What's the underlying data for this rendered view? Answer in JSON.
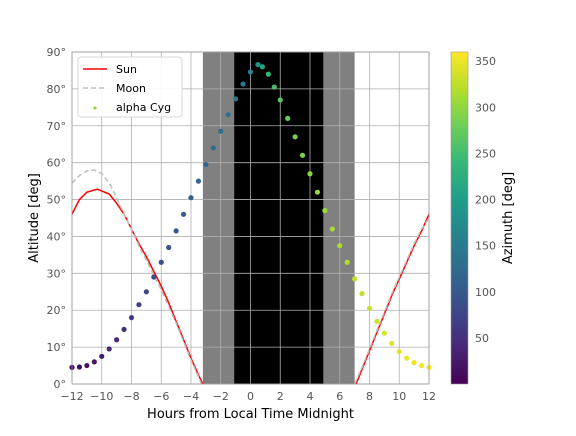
{
  "chart_data": {
    "type": "line",
    "xlabel": "Hours from Local Time Midnight",
    "ylabel": "Altitude [deg]",
    "xlim": [
      -12,
      12
    ],
    "ylim": [
      0,
      90
    ],
    "x_ticks": [
      "−12",
      "−10",
      "−8",
      "−6",
      "−4",
      "−2",
      "0",
      "2",
      "4",
      "6",
      "8",
      "10",
      "12"
    ],
    "y_ticks": [
      "0°",
      "10°",
      "20°",
      "30°",
      "40°",
      "50°",
      "60°",
      "70°",
      "80°",
      "90°"
    ],
    "grid": true,
    "legend_position": "upper-left",
    "night_shading": {
      "twilight": [
        [
          -3.2,
          -1.1
        ],
        [
          4.9,
          7.0
        ]
      ],
      "dark": [
        -1.1,
        4.9
      ],
      "twilight_color": "#808080",
      "dark_color": "#000000"
    },
    "series": [
      {
        "name": "Sun",
        "style": "solid",
        "color": "#ff0000",
        "points": [
          [
            -12,
            46
          ],
          [
            -11.5,
            50
          ],
          [
            -11,
            52
          ],
          [
            -10.3,
            52.8
          ],
          [
            -9.5,
            51.5
          ],
          [
            -9,
            49
          ],
          [
            -8.5,
            46
          ],
          [
            -8,
            42
          ],
          [
            -7.5,
            38
          ],
          [
            -7,
            34.5
          ],
          [
            -6.5,
            30.5
          ],
          [
            -6,
            26.5
          ],
          [
            -5.5,
            22
          ],
          [
            -5,
            17
          ],
          [
            -4.5,
            12
          ],
          [
            -4,
            7
          ],
          [
            -3.5,
            2.5
          ],
          [
            -3.2,
            0
          ]
        ]
      },
      {
        "name": "Sun",
        "style": "solid",
        "color": "#ff0000",
        "points": [
          [
            7.1,
            0
          ],
          [
            7.5,
            4
          ],
          [
            8,
            9
          ],
          [
            8.5,
            14
          ],
          [
            9,
            19
          ],
          [
            9.5,
            24
          ],
          [
            10,
            28.5
          ],
          [
            10.5,
            33
          ],
          [
            11,
            37.5
          ],
          [
            11.5,
            41.5
          ],
          [
            12,
            46
          ]
        ]
      },
      {
        "name": "Moon",
        "style": "dashed",
        "color": "#bfbfbf",
        "points": [
          [
            -12,
            54.5
          ],
          [
            -11.5,
            56.5
          ],
          [
            -11,
            57.8
          ],
          [
            -10.5,
            58
          ],
          [
            -10,
            57
          ],
          [
            -9.5,
            54.5
          ],
          [
            -9,
            50.5
          ],
          [
            -8.5,
            46
          ],
          [
            -8,
            42
          ],
          [
            -7.5,
            37.5
          ],
          [
            -7,
            33.5
          ],
          [
            -6.5,
            29.5
          ],
          [
            -6,
            25.5
          ],
          [
            -5.5,
            21
          ],
          [
            -5,
            16.5
          ],
          [
            -4.5,
            11.5
          ],
          [
            -4,
            6.5
          ],
          [
            -3.5,
            2
          ],
          [
            -3.3,
            0
          ]
        ]
      },
      {
        "name": "Moon",
        "style": "dashed",
        "color": "#bfbfbf",
        "points": [
          [
            7.0,
            0
          ],
          [
            7.5,
            4.5
          ],
          [
            8,
            9.5
          ],
          [
            8.5,
            14.5
          ],
          [
            9,
            19.5
          ],
          [
            9.5,
            24.5
          ],
          [
            10,
            29
          ],
          [
            10.5,
            33.5
          ],
          [
            11,
            38
          ],
          [
            11.5,
            42
          ],
          [
            12,
            45
          ]
        ]
      },
      {
        "name": "alpha Cyg",
        "style": "points",
        "colorbar": true,
        "points": [
          [
            -12,
            4.5,
            8
          ],
          [
            -11.5,
            4.6,
            10
          ],
          [
            -11,
            5.0,
            14
          ],
          [
            -10.5,
            6.0,
            20
          ],
          [
            -10,
            7.5,
            28
          ],
          [
            -9.5,
            9.5,
            36
          ],
          [
            -9,
            12,
            44
          ],
          [
            -8.5,
            14.8,
            52
          ],
          [
            -8,
            18,
            60
          ],
          [
            -7.5,
            21.5,
            68
          ],
          [
            -7,
            25,
            75
          ],
          [
            -6.5,
            29,
            82
          ],
          [
            -6,
            33,
            88
          ],
          [
            -5.5,
            37,
            94
          ],
          [
            -5,
            41.5,
            100
          ],
          [
            -4.5,
            46,
            105
          ],
          [
            -4,
            50.5,
            110
          ],
          [
            -3.5,
            55,
            115
          ],
          [
            -3,
            59.5,
            120
          ],
          [
            -2.5,
            64,
            124
          ],
          [
            -2,
            68.5,
            129
          ],
          [
            -1.5,
            73,
            134
          ],
          [
            -1,
            77.3,
            140
          ],
          [
            -0.5,
            81.3,
            148
          ],
          [
            0,
            84.6,
            165
          ],
          [
            0.5,
            86.6,
            190
          ],
          [
            0.8,
            86.0,
            210
          ],
          [
            1.2,
            84.0,
            235
          ],
          [
            1.6,
            80.5,
            252
          ],
          [
            2,
            77.0,
            265
          ],
          [
            2.5,
            72.0,
            276
          ],
          [
            3,
            67.0,
            284
          ],
          [
            3.5,
            62.0,
            291
          ],
          [
            4,
            57.0,
            297
          ],
          [
            4.5,
            52.0,
            302
          ],
          [
            5,
            47.0,
            307
          ],
          [
            5.5,
            42.0,
            312
          ],
          [
            6,
            37.5,
            316
          ],
          [
            6.5,
            33.0,
            320
          ],
          [
            7,
            28.5,
            324
          ],
          [
            7.5,
            24.5,
            328
          ],
          [
            8,
            20.5,
            332
          ],
          [
            8.5,
            17.0,
            336
          ],
          [
            9,
            13.8,
            340
          ],
          [
            9.5,
            11.0,
            343
          ],
          [
            10,
            8.8,
            346
          ],
          [
            10.5,
            7.0,
            349
          ],
          [
            11,
            5.8,
            352
          ],
          [
            11.5,
            5.0,
            355
          ],
          [
            12,
            4.5,
            357
          ]
        ]
      }
    ],
    "colorbar": {
      "label": "Azimuth [deg]",
      "range": [
        0,
        360
      ],
      "ticks": [
        "50",
        "100",
        "150",
        "200",
        "250",
        "300",
        "350"
      ],
      "tick_values": [
        50,
        100,
        150,
        200,
        250,
        300,
        350
      ],
      "colormap": [
        "#440154",
        "#482878",
        "#3e4989",
        "#31688e",
        "#26828e",
        "#1f9e89",
        "#35b779",
        "#6ece58",
        "#b5de2b",
        "#fde725"
      ]
    }
  }
}
